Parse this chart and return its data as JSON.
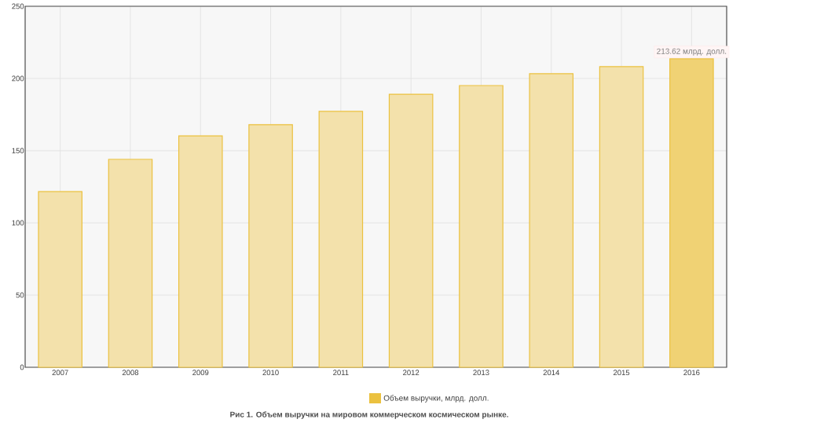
{
  "chart_data": {
    "type": "bar",
    "categories": [
      "2007",
      "2008",
      "2009",
      "2010",
      "2011",
      "2012",
      "2013",
      "2014",
      "2015",
      "2016"
    ],
    "series": [
      {
        "name": "Объем выручки, млрд. долл.",
        "color": "#ebc13f",
        "colors": [
          "#f3e1ab",
          "#f3e1ab",
          "#f3e1ab",
          "#f3e1ab",
          "#f3e1ab",
          "#f3e1ab",
          "#f3e1ab",
          "#f3e1ab",
          "#f3e1ab",
          "#f0d274"
        ],
        "values": [
          121.7,
          144,
          160.3,
          168,
          177.2,
          189.1,
          195.1,
          203.3,
          208.2,
          213.62
        ],
        "value_labels": [
          null,
          null,
          null,
          null,
          null,
          null,
          null,
          null,
          null,
          "213.62 млрд. долл."
        ]
      }
    ],
    "ylim": [
      0,
      250
    ],
    "yticks": [
      0,
      50,
      100,
      150,
      200,
      250
    ],
    "grid": true,
    "legend": "bottom",
    "annotations": [
      "Рис 1. Объем выручки на мировом коммерческом космическом рынке."
    ]
  }
}
